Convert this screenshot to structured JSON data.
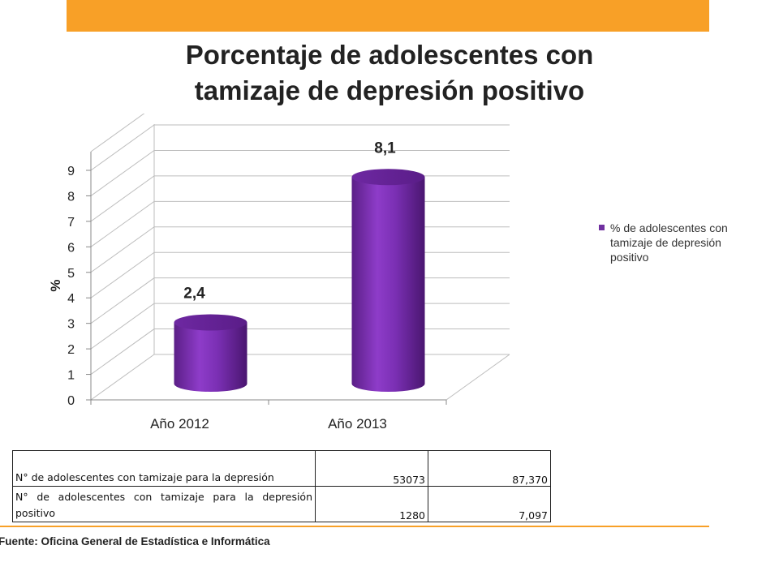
{
  "title": "Porcentaje de adolescentes con\ntamizaje de depresión positivo",
  "colors": {
    "accent": "#F8A027",
    "bar": "#7030A0"
  },
  "chart_data": {
    "type": "bar",
    "categories": [
      "Año 2012",
      "Año 2013"
    ],
    "series": [
      {
        "name": "% de adolescentes con tamizaje de depresión positivo",
        "values": [
          2.4,
          8.1
        ]
      }
    ],
    "data_labels": [
      "2,4",
      "8,1"
    ],
    "ylabel": "%",
    "ylim": [
      0,
      9
    ],
    "yticks": [
      0,
      1,
      2,
      3,
      4,
      5,
      6,
      7,
      8,
      9
    ],
    "grid": true,
    "legend_position": "right",
    "style": "3d-cylinder"
  },
  "table": {
    "rows": [
      {
        "label": "N° de adolescentes con tamizaje para la depresión",
        "values": [
          "53073",
          "87,370"
        ]
      },
      {
        "label": "N° de adolescentes con tamizaje para la depresión positivo",
        "values": [
          "1280",
          "7,097"
        ]
      }
    ]
  },
  "source": "Fuente: Oficina General de Estadística e Informática"
}
